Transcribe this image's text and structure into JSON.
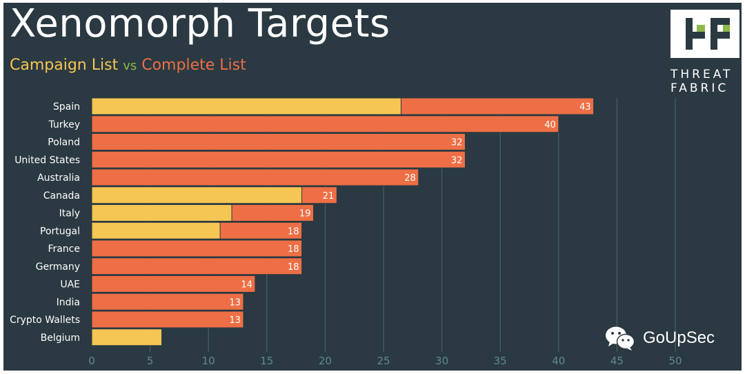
{
  "title": "Xenomorph Targets",
  "subtitle": {
    "campaign": "Campaign List",
    "vs": "vs",
    "complete": "Complete List"
  },
  "logo": {
    "line1": "THREAT",
    "line2": "FABRIC"
  },
  "watermark": "GoUpSec",
  "colors": {
    "background": "#2b3942",
    "campaign": "#f5c653",
    "complete": "#ee6f45",
    "grid": "#4a6a6f",
    "tick": "#5f8a8e",
    "vs": "#8fb84a"
  },
  "chart_data": {
    "type": "bar",
    "orientation": "horizontal",
    "title": "Xenomorph Targets",
    "categories": [
      "Spain",
      "Turkey",
      "Poland",
      "United States",
      "Australia",
      "Canada",
      "Italy",
      "Portugal",
      "France",
      "Germany",
      "UAE",
      "India",
      "Crypto Wallets",
      "Belgium"
    ],
    "series": [
      {
        "name": "Campaign List",
        "values": [
          26.5,
          0,
          0,
          0,
          0,
          18,
          12,
          11,
          0,
          0,
          0,
          0,
          0,
          6
        ]
      },
      {
        "name": "Complete List",
        "values": [
          43,
          40,
          32,
          32,
          28,
          21,
          19,
          18,
          18,
          18,
          14,
          13,
          13,
          0
        ]
      }
    ],
    "data_labels": [
      "43",
      "40",
      "32",
      "32",
      "28",
      "21",
      "19",
      "18",
      "18",
      "18",
      "14",
      "13",
      "13",
      ""
    ],
    "xlim": [
      0,
      50
    ],
    "xticks": [
      0,
      5,
      10,
      15,
      20,
      25,
      30,
      35,
      40,
      45,
      50
    ],
    "grid": true,
    "legend": "subtitle"
  }
}
